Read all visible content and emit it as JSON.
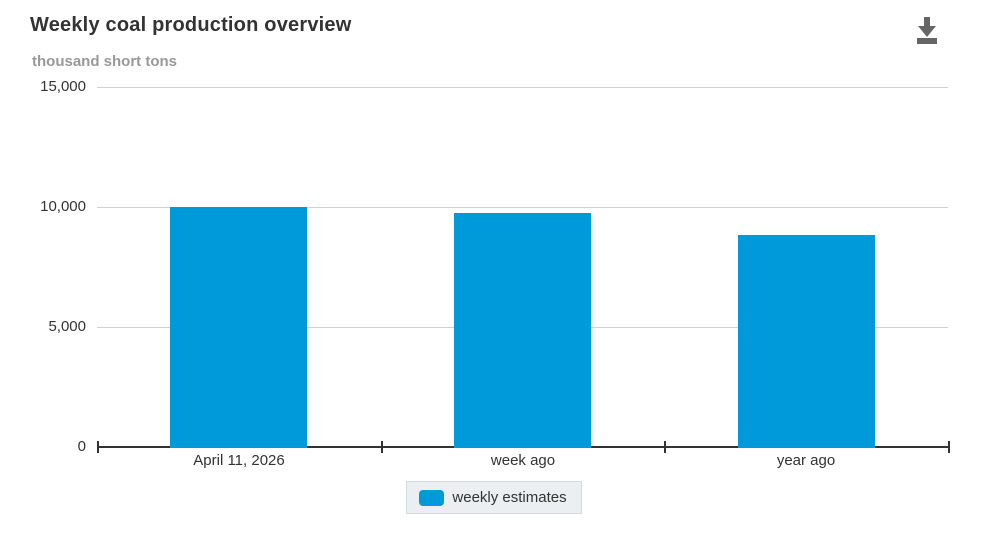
{
  "header": {
    "title": "Weekly coal production overview",
    "units": "thousand short tons",
    "download_icon": "download-icon"
  },
  "chart_data": {
    "type": "bar",
    "title": "Weekly coal production overview",
    "subtitle": "thousand short tons",
    "categories": [
      "April 11, 2026",
      "week ago",
      "year ago"
    ],
    "series": [
      {
        "name": "weekly estimates",
        "color": "#0099da",
        "values": [
          10000,
          9770,
          8820
        ]
      }
    ],
    "xlabel": "",
    "ylabel": "thousand short tons",
    "ylim": [
      0,
      15000
    ],
    "yticks": [
      0,
      5000,
      10000,
      15000
    ],
    "ytick_labels": [
      "0",
      "5,000",
      "10,000",
      "15,000"
    ],
    "grid": true,
    "legend_position": "bottom"
  },
  "legend": {
    "items": [
      {
        "label": "weekly estimates",
        "color": "#0099da"
      }
    ]
  },
  "colors": {
    "bar": "#0099da",
    "gridline": "#d0d0d0",
    "axis": "#333333",
    "title": "#333333",
    "subtitle": "#999999",
    "legend_bg": "#ebeff1",
    "legend_border": "#d3dade",
    "icon": "#666666"
  }
}
